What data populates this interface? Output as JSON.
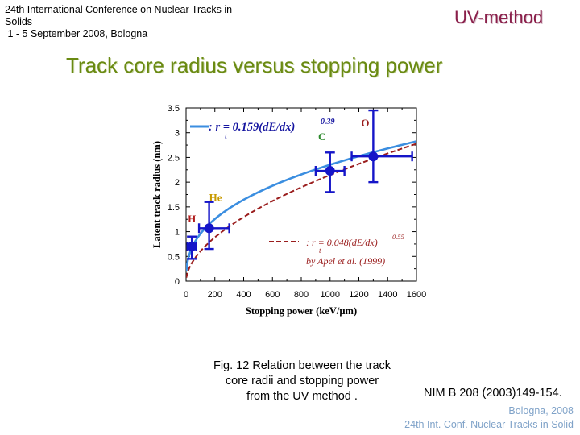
{
  "header": {
    "conference_lines": [
      "24th International Conference on Nuclear Tracks in",
      "Solids",
      " 1 - 5 September 2008, Bologna"
    ],
    "method_label": "UV-method"
  },
  "slide": {
    "title": "Track core radius versus stopping power",
    "caption_lines": [
      "Fig. 12 Relation between the track",
      "core radii and stopping power",
      "from the UV method ."
    ],
    "reference": "NIM B 208 (2003)149-154.",
    "footer_lines": [
      "Bologna, 2008",
      "24th Int. Conf. Nuclear Tracks in Solid"
    ]
  },
  "chart_data": {
    "type": "scatter",
    "xlabel": "Stopping power (keV/µm)",
    "ylabel": "Latent track radius (nm)",
    "xlim": [
      0,
      1600
    ],
    "ylim": [
      0,
      3.5
    ],
    "x_ticks": [
      "0",
      "200",
      "400",
      "600",
      "800",
      "1000",
      "1200",
      "1400",
      "1600"
    ],
    "y_ticks": [
      "0",
      "0.5",
      "1",
      "1.5",
      "2",
      "2.5",
      "3",
      "3.5"
    ],
    "points": [
      {
        "label": "H",
        "x": 40,
        "y": 0.7,
        "x_err": [
          10,
          70
        ],
        "y_err": [
          0.45,
          0.9
        ]
      },
      {
        "label": "He",
        "x": 160,
        "y": 1.07,
        "x_err": [
          90,
          300
        ],
        "y_err": [
          0.65,
          1.6
        ]
      },
      {
        "label": "C",
        "x": 1000,
        "y": 2.23,
        "x_err": [
          900,
          1100
        ],
        "y_err": [
          1.8,
          2.6
        ]
      },
      {
        "label": "O",
        "x": 1300,
        "y": 2.52,
        "x_err": [
          1150,
          1570
        ],
        "y_err": [
          2.0,
          3.45
        ]
      }
    ],
    "curves": [
      {
        "name": ": r  = 0.159(dE/dx)",
        "subscript": "t",
        "exponent": "0.39",
        "coef": 0.159,
        "power": 0.39,
        "color": "#3b8ee0",
        "style": "solid"
      },
      {
        "name": ": r  = 0.048(dE/dx)",
        "subscript": "t",
        "exponent": "0.55",
        "coef": 0.048,
        "power": 0.55,
        "color": "#9a1d1d",
        "style": "dashed",
        "note": "by Apel et al. (1999)"
      }
    ],
    "label_colors": {
      "H": "#b01c1c",
      "He": "#c89a00",
      "C": "#2c8a2c",
      "O": "#9a1d1d"
    },
    "marker_color": "#1515c8"
  }
}
